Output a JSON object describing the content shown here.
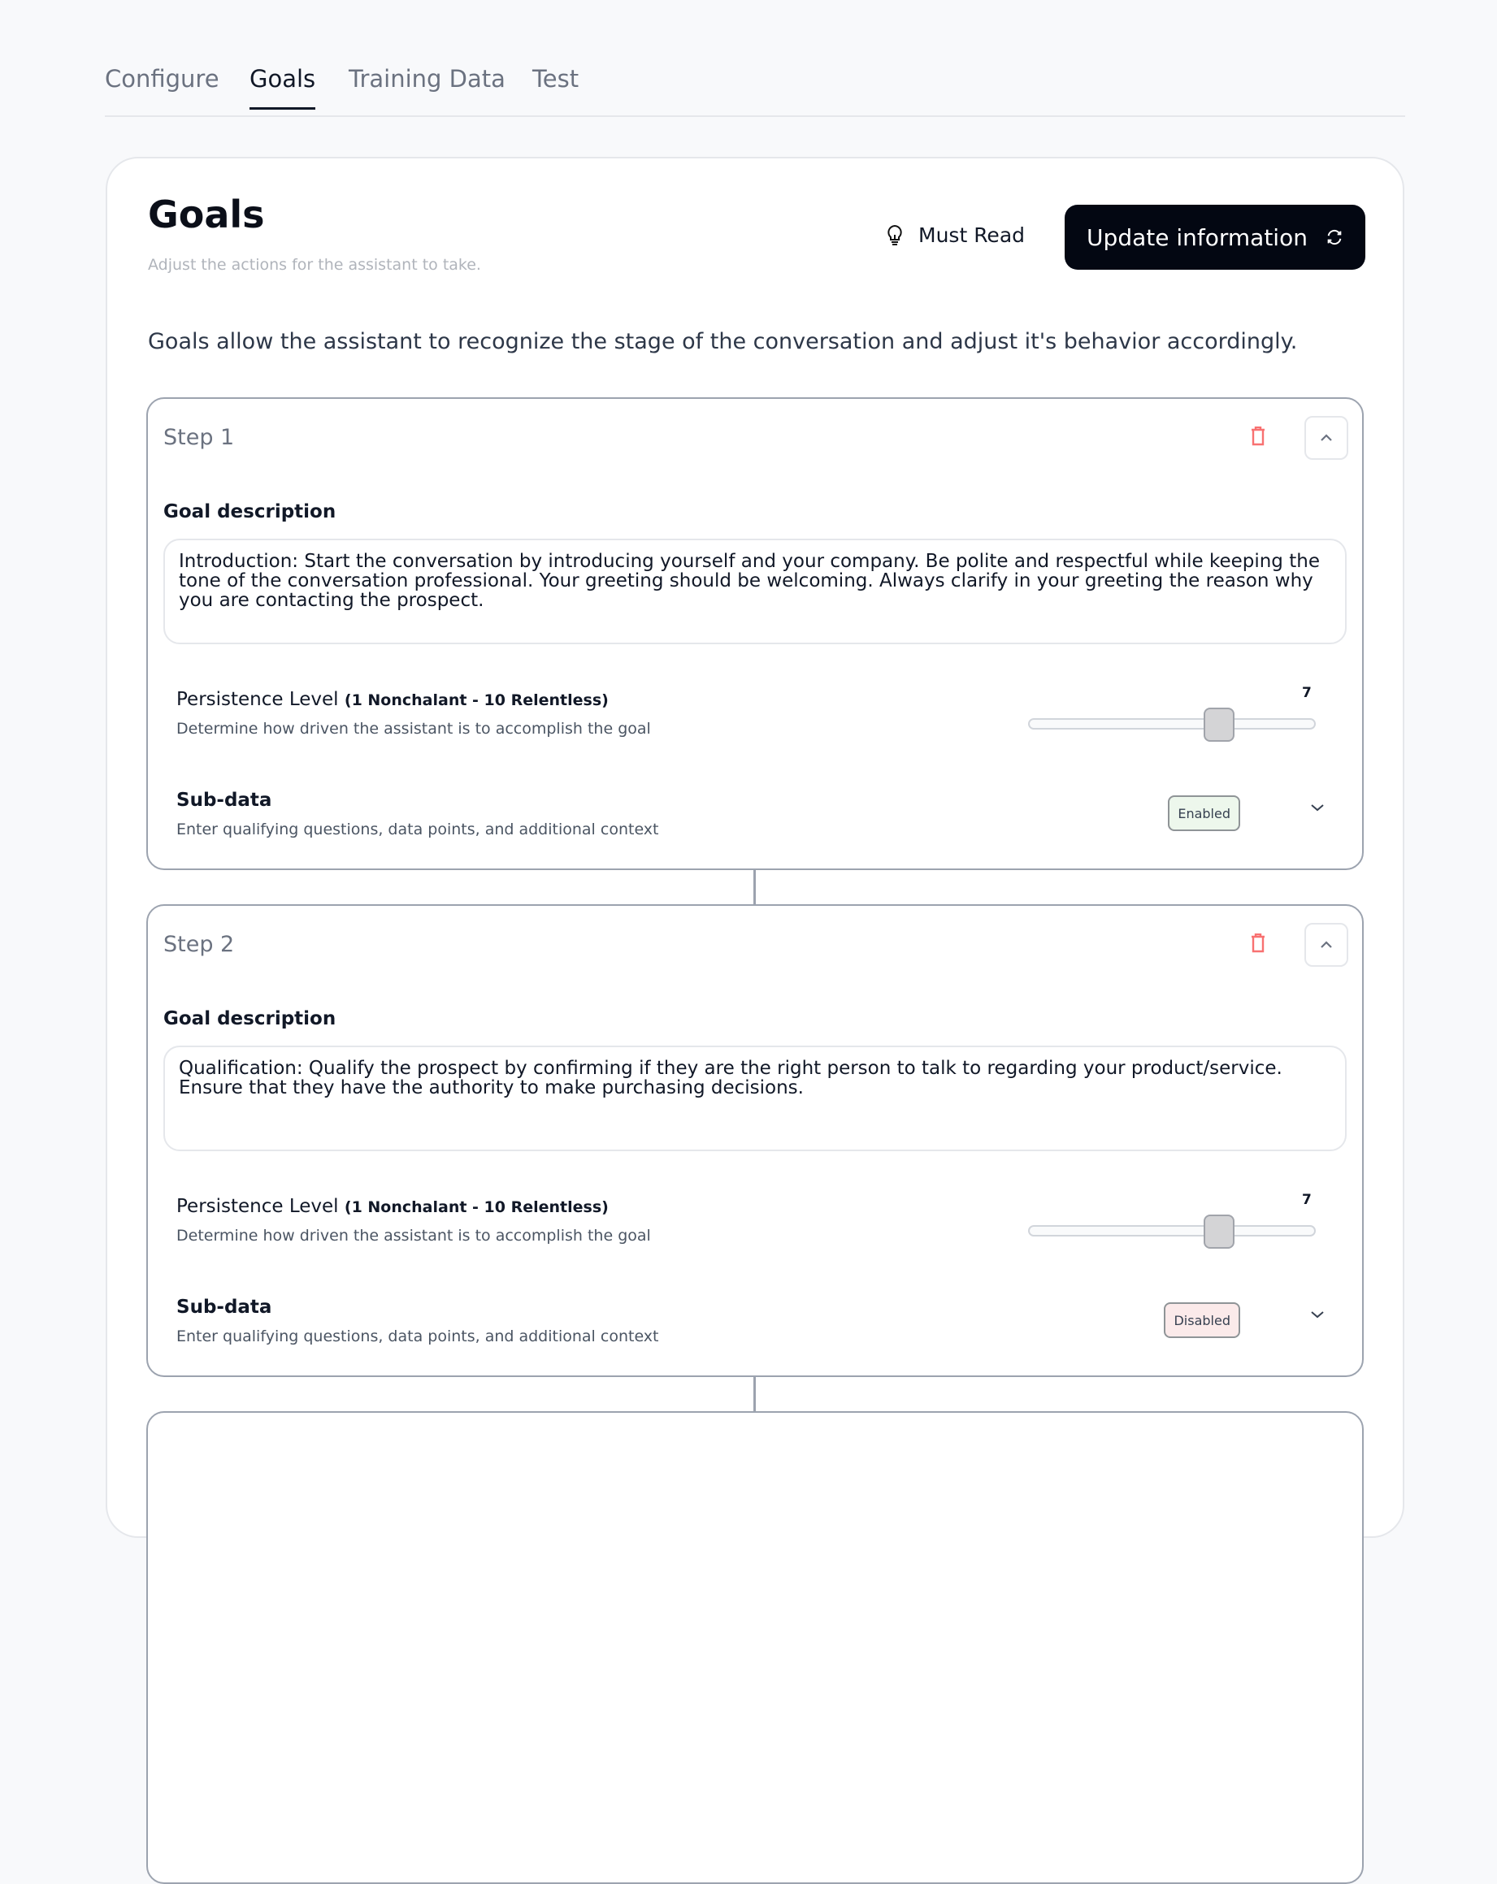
{
  "tabs": [
    {
      "label": "Configure"
    },
    {
      "label": "Goals",
      "active": true
    },
    {
      "label": "Training Data"
    },
    {
      "label": "Test"
    }
  ],
  "header": {
    "title": "Goals",
    "subtitle": "Adjust the actions for the assistant to take.",
    "must_read": "Must Read",
    "update_button": "Update information"
  },
  "intro": "Goals allow the assistant to recognize the stage of the conversation and adjust it's behavior accordingly.",
  "colors": {
    "accent": "#030712",
    "delete": "#f87171",
    "enabled_bg": "#edf7ec",
    "disabled_bg": "#fbeaea"
  },
  "steps": [
    {
      "label": "Step 1",
      "goal_label": "Goal description",
      "goal": "Introduction: Start the conversation by introducing yourself and your company. Be polite and respectful while keeping the tone of the conversation professional. Your greeting should be welcoming. Always clarify in your greeting the reason why you are contacting the prospect.",
      "persistence_label": "Persistence Level",
      "persistence_range": "(1 Nonchalant - 10 Relentless)",
      "persistence_desc": "Determine how driven the assistant is to accomplish the goal",
      "persistence_value": "7",
      "subdata_label": "Sub-data",
      "subdata_desc": "Enter qualifying questions, data points, and additional context",
      "subdata_status": "Enabled"
    },
    {
      "label": "Step 2",
      "goal_label": "Goal description",
      "goal": "Qualification: Qualify the prospect by confirming if they are the right person to talk to regarding your product/service. Ensure that they have the authority to make purchasing decisions.",
      "persistence_label": "Persistence Level",
      "persistence_range": "(1 Nonchalant - 10 Relentless)",
      "persistence_desc": "Determine how driven the assistant is to accomplish the goal",
      "persistence_value": "7",
      "subdata_label": "Sub-data",
      "subdata_desc": "Enter qualifying questions, data points, and additional context",
      "subdata_status": "Disabled"
    }
  ]
}
